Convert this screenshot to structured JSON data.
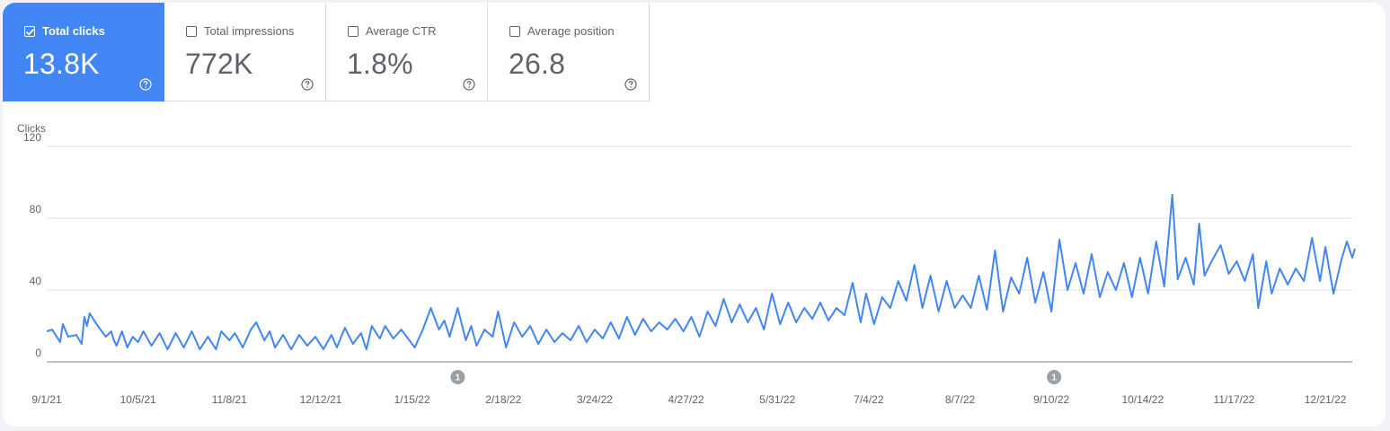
{
  "metrics": [
    {
      "label": "Total clicks",
      "value": "13.8K",
      "checked": true,
      "help_icon": "help-circle-icon"
    },
    {
      "label": "Total impressions",
      "value": "772K",
      "checked": false,
      "help_icon": "help-circle-icon"
    },
    {
      "label": "Average CTR",
      "value": "1.8%",
      "checked": false,
      "help_icon": "help-circle-icon"
    },
    {
      "label": "Average position",
      "value": "26.8",
      "checked": false,
      "help_icon": "help-circle-icon"
    }
  ],
  "colors": {
    "accent": "#4285f4",
    "line": "#4285f4",
    "grid": "#e0e0e0",
    "text": "#5f6368",
    "annotation": "#9aa0a6"
  },
  "chart_data": {
    "type": "line",
    "ylabel": "Clicks",
    "ylim": [
      0,
      120
    ],
    "yticks": [
      "0",
      "40",
      "80",
      "120"
    ],
    "xlim": [
      "2021-09-01",
      "2022-12-31"
    ],
    "xtick_labels": [
      "9/1/21",
      "10/5/21",
      "11/8/21",
      "12/12/21",
      "1/15/22",
      "2/18/22",
      "3/24/22",
      "4/27/22",
      "5/31/22",
      "7/4/22",
      "8/7/22",
      "9/10/22",
      "10/14/22",
      "11/17/22",
      "12/21/22"
    ],
    "annotations": [
      {
        "date": "2022-02-01",
        "text": "1"
      },
      {
        "date": "2022-09-11",
        "text": "1"
      }
    ],
    "series": [
      {
        "name": "Clicks",
        "color": "#4285f4",
        "anchors": [
          [
            "2021-09-01",
            17
          ],
          [
            "2021-09-03",
            18
          ],
          [
            "2021-09-06",
            11
          ],
          [
            "2021-09-07",
            21
          ],
          [
            "2021-09-09",
            14
          ],
          [
            "2021-09-12",
            15
          ],
          [
            "2021-09-14",
            10
          ],
          [
            "2021-09-15",
            25
          ],
          [
            "2021-09-16",
            20
          ],
          [
            "2021-09-17",
            27
          ],
          [
            "2021-09-20",
            20
          ],
          [
            "2021-09-23",
            14
          ],
          [
            "2021-09-25",
            17
          ],
          [
            "2021-09-26",
            12
          ],
          [
            "2021-09-27",
            9
          ],
          [
            "2021-09-29",
            17
          ],
          [
            "2021-10-01",
            8
          ],
          [
            "2021-10-03",
            14
          ],
          [
            "2021-10-05",
            11
          ],
          [
            "2021-10-07",
            17
          ],
          [
            "2021-10-10",
            9
          ],
          [
            "2021-10-13",
            16
          ],
          [
            "2021-10-16",
            7
          ],
          [
            "2021-10-19",
            16
          ],
          [
            "2021-10-22",
            8
          ],
          [
            "2021-10-25",
            17
          ],
          [
            "2021-10-28",
            7
          ],
          [
            "2021-10-31",
            14
          ],
          [
            "2021-11-03",
            7
          ],
          [
            "2021-11-05",
            17
          ],
          [
            "2021-11-08",
            12
          ],
          [
            "2021-11-10",
            16
          ],
          [
            "2021-11-13",
            8
          ],
          [
            "2021-11-16",
            18
          ],
          [
            "2021-11-18",
            22
          ],
          [
            "2021-11-21",
            12
          ],
          [
            "2021-11-23",
            17
          ],
          [
            "2021-11-25",
            8
          ],
          [
            "2021-11-28",
            15
          ],
          [
            "2021-12-01",
            7
          ],
          [
            "2021-12-04",
            15
          ],
          [
            "2021-12-07",
            9
          ],
          [
            "2021-12-10",
            14
          ],
          [
            "2021-12-13",
            7
          ],
          [
            "2021-12-16",
            15
          ],
          [
            "2021-12-18",
            8
          ],
          [
            "2021-12-21",
            19
          ],
          [
            "2021-12-24",
            10
          ],
          [
            "2021-12-27",
            16
          ],
          [
            "2021-12-29",
            7
          ],
          [
            "2021-12-31",
            20
          ],
          [
            "2022-01-03",
            13
          ],
          [
            "2022-01-05",
            20
          ],
          [
            "2022-01-08",
            13
          ],
          [
            "2022-01-11",
            18
          ],
          [
            "2022-01-14",
            12
          ],
          [
            "2022-01-16",
            8
          ],
          [
            "2022-01-19",
            18
          ],
          [
            "2022-01-22",
            30
          ],
          [
            "2022-01-25",
            18
          ],
          [
            "2022-01-27",
            23
          ],
          [
            "2022-01-29",
            14
          ],
          [
            "2022-02-01",
            30
          ],
          [
            "2022-02-04",
            12
          ],
          [
            "2022-02-06",
            20
          ],
          [
            "2022-02-08",
            9
          ],
          [
            "2022-02-11",
            18
          ],
          [
            "2022-02-14",
            14
          ],
          [
            "2022-02-16",
            28
          ],
          [
            "2022-02-19",
            8
          ],
          [
            "2022-02-22",
            22
          ],
          [
            "2022-02-25",
            14
          ],
          [
            "2022-02-28",
            20
          ],
          [
            "2022-03-03",
            10
          ],
          [
            "2022-03-06",
            18
          ],
          [
            "2022-03-09",
            11
          ],
          [
            "2022-03-12",
            16
          ],
          [
            "2022-03-15",
            12
          ],
          [
            "2022-03-18",
            20
          ],
          [
            "2022-03-21",
            11
          ],
          [
            "2022-03-24",
            18
          ],
          [
            "2022-03-27",
            13
          ],
          [
            "2022-03-30",
            22
          ],
          [
            "2022-04-02",
            13
          ],
          [
            "2022-04-05",
            25
          ],
          [
            "2022-04-08",
            15
          ],
          [
            "2022-04-11",
            24
          ],
          [
            "2022-04-14",
            17
          ],
          [
            "2022-04-17",
            22
          ],
          [
            "2022-04-20",
            18
          ],
          [
            "2022-04-23",
            24
          ],
          [
            "2022-04-26",
            17
          ],
          [
            "2022-04-29",
            25
          ],
          [
            "2022-05-02",
            14
          ],
          [
            "2022-05-05",
            28
          ],
          [
            "2022-05-08",
            20
          ],
          [
            "2022-05-11",
            35
          ],
          [
            "2022-05-14",
            22
          ],
          [
            "2022-05-17",
            32
          ],
          [
            "2022-05-20",
            22
          ],
          [
            "2022-05-23",
            30
          ],
          [
            "2022-05-26",
            18
          ],
          [
            "2022-05-29",
            38
          ],
          [
            "2022-06-01",
            21
          ],
          [
            "2022-06-04",
            33
          ],
          [
            "2022-06-07",
            22
          ],
          [
            "2022-06-10",
            30
          ],
          [
            "2022-06-13",
            24
          ],
          [
            "2022-06-16",
            33
          ],
          [
            "2022-06-19",
            23
          ],
          [
            "2022-06-22",
            30
          ],
          [
            "2022-06-25",
            26
          ],
          [
            "2022-06-28",
            44
          ],
          [
            "2022-07-01",
            22
          ],
          [
            "2022-07-03",
            38
          ],
          [
            "2022-07-06",
            21
          ],
          [
            "2022-07-09",
            36
          ],
          [
            "2022-07-12",
            30
          ],
          [
            "2022-07-15",
            45
          ],
          [
            "2022-07-18",
            34
          ],
          [
            "2022-07-21",
            54
          ],
          [
            "2022-07-24",
            30
          ],
          [
            "2022-07-27",
            48
          ],
          [
            "2022-07-30",
            28
          ],
          [
            "2022-08-02",
            45
          ],
          [
            "2022-08-05",
            30
          ],
          [
            "2022-08-08",
            37
          ],
          [
            "2022-08-11",
            30
          ],
          [
            "2022-08-14",
            48
          ],
          [
            "2022-08-17",
            29
          ],
          [
            "2022-08-20",
            62
          ],
          [
            "2022-08-23",
            28
          ],
          [
            "2022-08-26",
            47
          ],
          [
            "2022-08-29",
            38
          ],
          [
            "2022-09-01",
            58
          ],
          [
            "2022-09-04",
            33
          ],
          [
            "2022-09-07",
            50
          ],
          [
            "2022-09-10",
            28
          ],
          [
            "2022-09-13",
            68
          ],
          [
            "2022-09-16",
            40
          ],
          [
            "2022-09-19",
            55
          ],
          [
            "2022-09-22",
            38
          ],
          [
            "2022-09-25",
            60
          ],
          [
            "2022-09-28",
            36
          ],
          [
            "2022-10-01",
            50
          ],
          [
            "2022-10-04",
            40
          ],
          [
            "2022-10-07",
            55
          ],
          [
            "2022-10-10",
            36
          ],
          [
            "2022-10-13",
            58
          ],
          [
            "2022-10-16",
            38
          ],
          [
            "2022-10-19",
            67
          ],
          [
            "2022-10-22",
            42
          ],
          [
            "2022-10-25",
            93
          ],
          [
            "2022-10-27",
            46
          ],
          [
            "2022-10-30",
            58
          ],
          [
            "2022-11-02",
            43
          ],
          [
            "2022-11-04",
            77
          ],
          [
            "2022-11-06",
            48
          ],
          [
            "2022-11-09",
            57
          ],
          [
            "2022-11-12",
            65
          ],
          [
            "2022-11-15",
            49
          ],
          [
            "2022-11-18",
            56
          ],
          [
            "2022-11-21",
            45
          ],
          [
            "2022-11-24",
            60
          ],
          [
            "2022-11-26",
            30
          ],
          [
            "2022-11-29",
            56
          ],
          [
            "2022-12-01",
            38
          ],
          [
            "2022-12-04",
            52
          ],
          [
            "2022-12-07",
            43
          ],
          [
            "2022-12-10",
            52
          ],
          [
            "2022-12-13",
            45
          ],
          [
            "2022-12-16",
            69
          ],
          [
            "2022-12-19",
            45
          ],
          [
            "2022-12-21",
            64
          ],
          [
            "2022-12-24",
            38
          ],
          [
            "2022-12-27",
            57
          ],
          [
            "2022-12-29",
            67
          ],
          [
            "2022-12-31",
            58
          ],
          [
            "2023-01-01",
            63
          ]
        ]
      }
    ]
  }
}
